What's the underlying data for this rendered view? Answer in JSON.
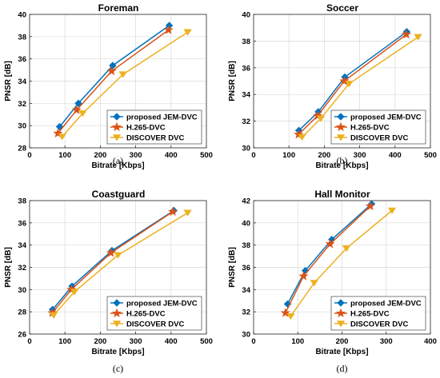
{
  "chart_data": [
    {
      "type": "line",
      "title": "Foreman",
      "caption": "(a)",
      "xlabel": "Bitrate [Kbps]",
      "ylabel": "PNSR [dB]",
      "xlim": [
        0,
        500
      ],
      "ylim": [
        28,
        40
      ],
      "xticks": [
        0,
        100,
        200,
        300,
        400,
        500
      ],
      "yticks": [
        28,
        30,
        32,
        34,
        36,
        38,
        40
      ],
      "grid": true,
      "legend_position": "bottom-right",
      "series": [
        {
          "name": "proposed JEM-DVC",
          "color": "#0072BD",
          "marker": "diamond",
          "x": [
            85,
            138,
            235,
            395
          ],
          "y": [
            29.9,
            32.0,
            35.4,
            39.0
          ]
        },
        {
          "name": "H.265-DVC",
          "color": "#D95319",
          "marker": "star",
          "x": [
            80,
            133,
            232,
            393
          ],
          "y": [
            29.3,
            31.4,
            34.9,
            38.6
          ]
        },
        {
          "name": "DISCOVER DVC",
          "color": "#EDB120",
          "marker": "triangle-down",
          "x": [
            92,
            150,
            264,
            447
          ],
          "y": [
            29.0,
            31.1,
            34.6,
            38.4
          ]
        }
      ]
    },
    {
      "type": "line",
      "title": "Soccer",
      "caption": "(b)",
      "xlabel": "Bitrate [Kbps]",
      "ylabel": "PNSR [dB]",
      "xlim": [
        0,
        500
      ],
      "ylim": [
        30,
        40
      ],
      "xticks": [
        0,
        100,
        200,
        300,
        400,
        500
      ],
      "yticks": [
        30,
        32,
        34,
        36,
        38,
        40
      ],
      "grid": true,
      "legend_position": "bottom-right",
      "series": [
        {
          "name": "proposed JEM-DVC",
          "color": "#0072BD",
          "marker": "diamond",
          "x": [
            128,
            183,
            258,
            433
          ],
          "y": [
            31.3,
            32.7,
            35.3,
            38.7
          ]
        },
        {
          "name": "H.265-DVC",
          "color": "#D95319",
          "marker": "star",
          "x": [
            127,
            181,
            256,
            432
          ],
          "y": [
            31.0,
            32.4,
            35.0,
            38.5
          ]
        },
        {
          "name": "DISCOVER DVC",
          "color": "#EDB120",
          "marker": "triangle-down",
          "x": [
            137,
            190,
            270,
            465
          ],
          "y": [
            30.8,
            32.2,
            34.8,
            38.3
          ]
        }
      ]
    },
    {
      "type": "line",
      "title": "Coastguard",
      "caption": "(c)",
      "xlabel": "Bitrate [Kbps]",
      "ylabel": "PNSR [dB]",
      "xlim": [
        0,
        500
      ],
      "ylim": [
        26,
        38
      ],
      "xticks": [
        0,
        100,
        200,
        300,
        400,
        500
      ],
      "yticks": [
        26,
        28,
        30,
        32,
        34,
        36,
        38
      ],
      "grid": true,
      "legend_position": "bottom-right",
      "series": [
        {
          "name": "proposed JEM-DVC",
          "color": "#0072BD",
          "marker": "diamond",
          "x": [
            65,
            120,
            233,
            408
          ],
          "y": [
            28.2,
            30.3,
            33.5,
            37.1
          ]
        },
        {
          "name": "H.265-DVC",
          "color": "#D95319",
          "marker": "star",
          "x": [
            64,
            118,
            230,
            405
          ],
          "y": [
            27.9,
            30.0,
            33.3,
            37.0
          ]
        },
        {
          "name": "DISCOVER DVC",
          "color": "#EDB120",
          "marker": "triangle-down",
          "x": [
            68,
            127,
            250,
            447
          ],
          "y": [
            27.7,
            29.8,
            33.1,
            36.9
          ]
        }
      ]
    },
    {
      "type": "line",
      "title": "Hall Monitor",
      "caption": "(d)",
      "xlabel": "Bitrate [Kbps]",
      "ylabel": "PNSR [dB]",
      "xlim": [
        0,
        400
      ],
      "ylim": [
        30,
        42
      ],
      "xticks": [
        0,
        100,
        200,
        300,
        400
      ],
      "yticks": [
        30,
        32,
        34,
        36,
        38,
        40,
        42
      ],
      "grid": true,
      "legend_position": "bottom-right",
      "series": [
        {
          "name": "proposed JEM-DVC",
          "color": "#0072BD",
          "marker": "diamond",
          "x": [
            77,
            117,
            177,
            267
          ],
          "y": [
            32.7,
            35.7,
            38.5,
            41.7
          ]
        },
        {
          "name": "H.265-DVC",
          "color": "#D95319",
          "marker": "star",
          "x": [
            72,
            113,
            173,
            264
          ],
          "y": [
            31.9,
            35.2,
            38.1,
            41.5
          ]
        },
        {
          "name": "DISCOVER DVC",
          "color": "#EDB120",
          "marker": "triangle-down",
          "x": [
            84,
            137,
            210,
            313
          ],
          "y": [
            31.6,
            34.6,
            37.7,
            41.1
          ]
        }
      ]
    }
  ]
}
